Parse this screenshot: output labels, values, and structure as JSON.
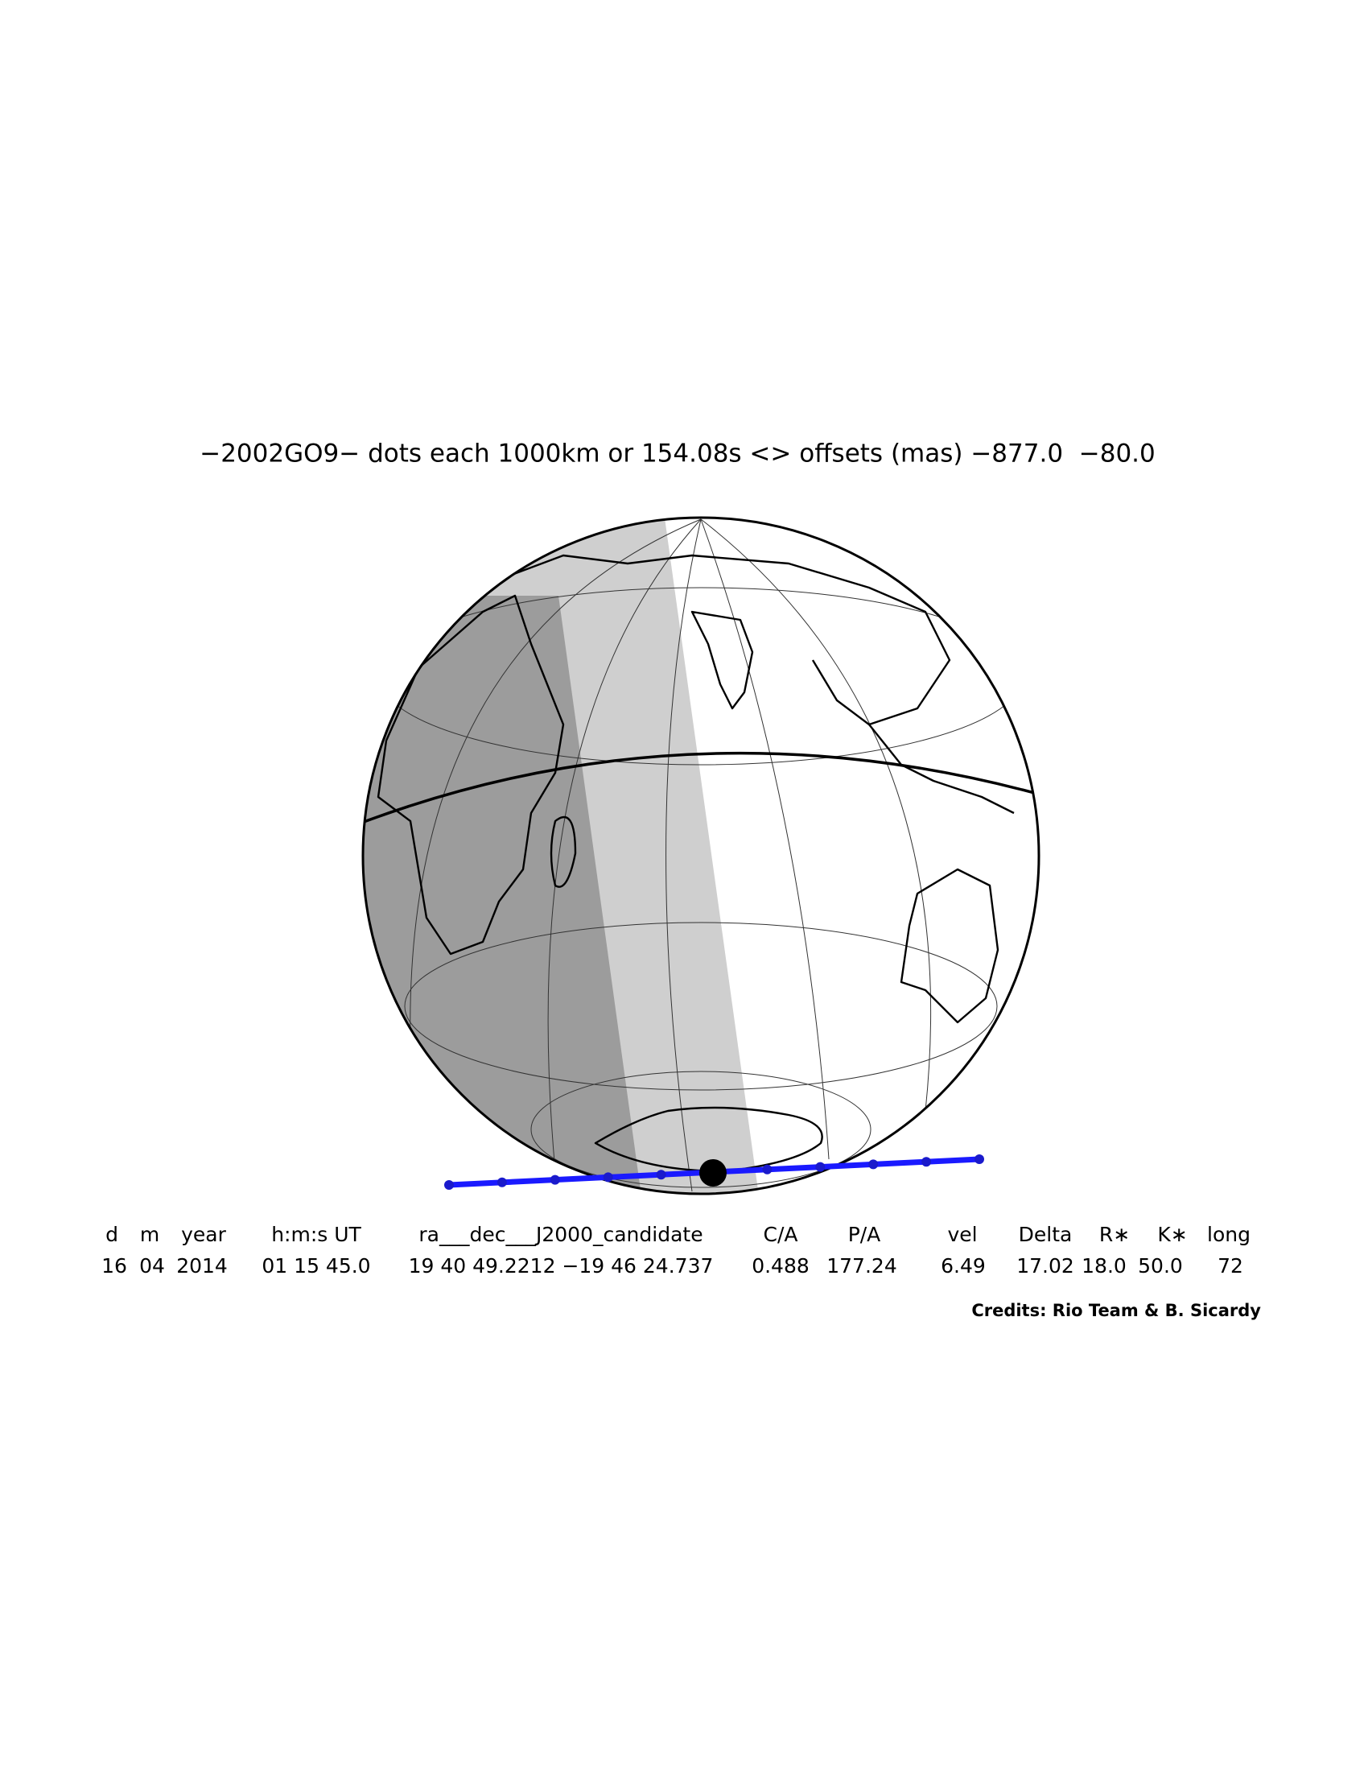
{
  "title": "−2002GO9− dots each 1000km or 154.08s <> offsets (mas) −877.0  −80.0",
  "table": {
    "headers": [
      "d",
      "m",
      "year",
      "h:m:s UT",
      "ra___dec___J2000_candidate",
      "C/A",
      "P/A",
      "vel",
      "Delta",
      "R∗",
      "K∗",
      "long"
    ],
    "rows": [
      [
        "16",
        "04",
        "2014",
        "01 15 45.0",
        "19 40 49.2212 −19 46 24.737",
        "0.488",
        "177.24",
        "6.49",
        "17.02",
        "18.0",
        "50.0",
        "72"
      ]
    ]
  },
  "credits": "Credits: Rio Team & B. Sicardy"
}
